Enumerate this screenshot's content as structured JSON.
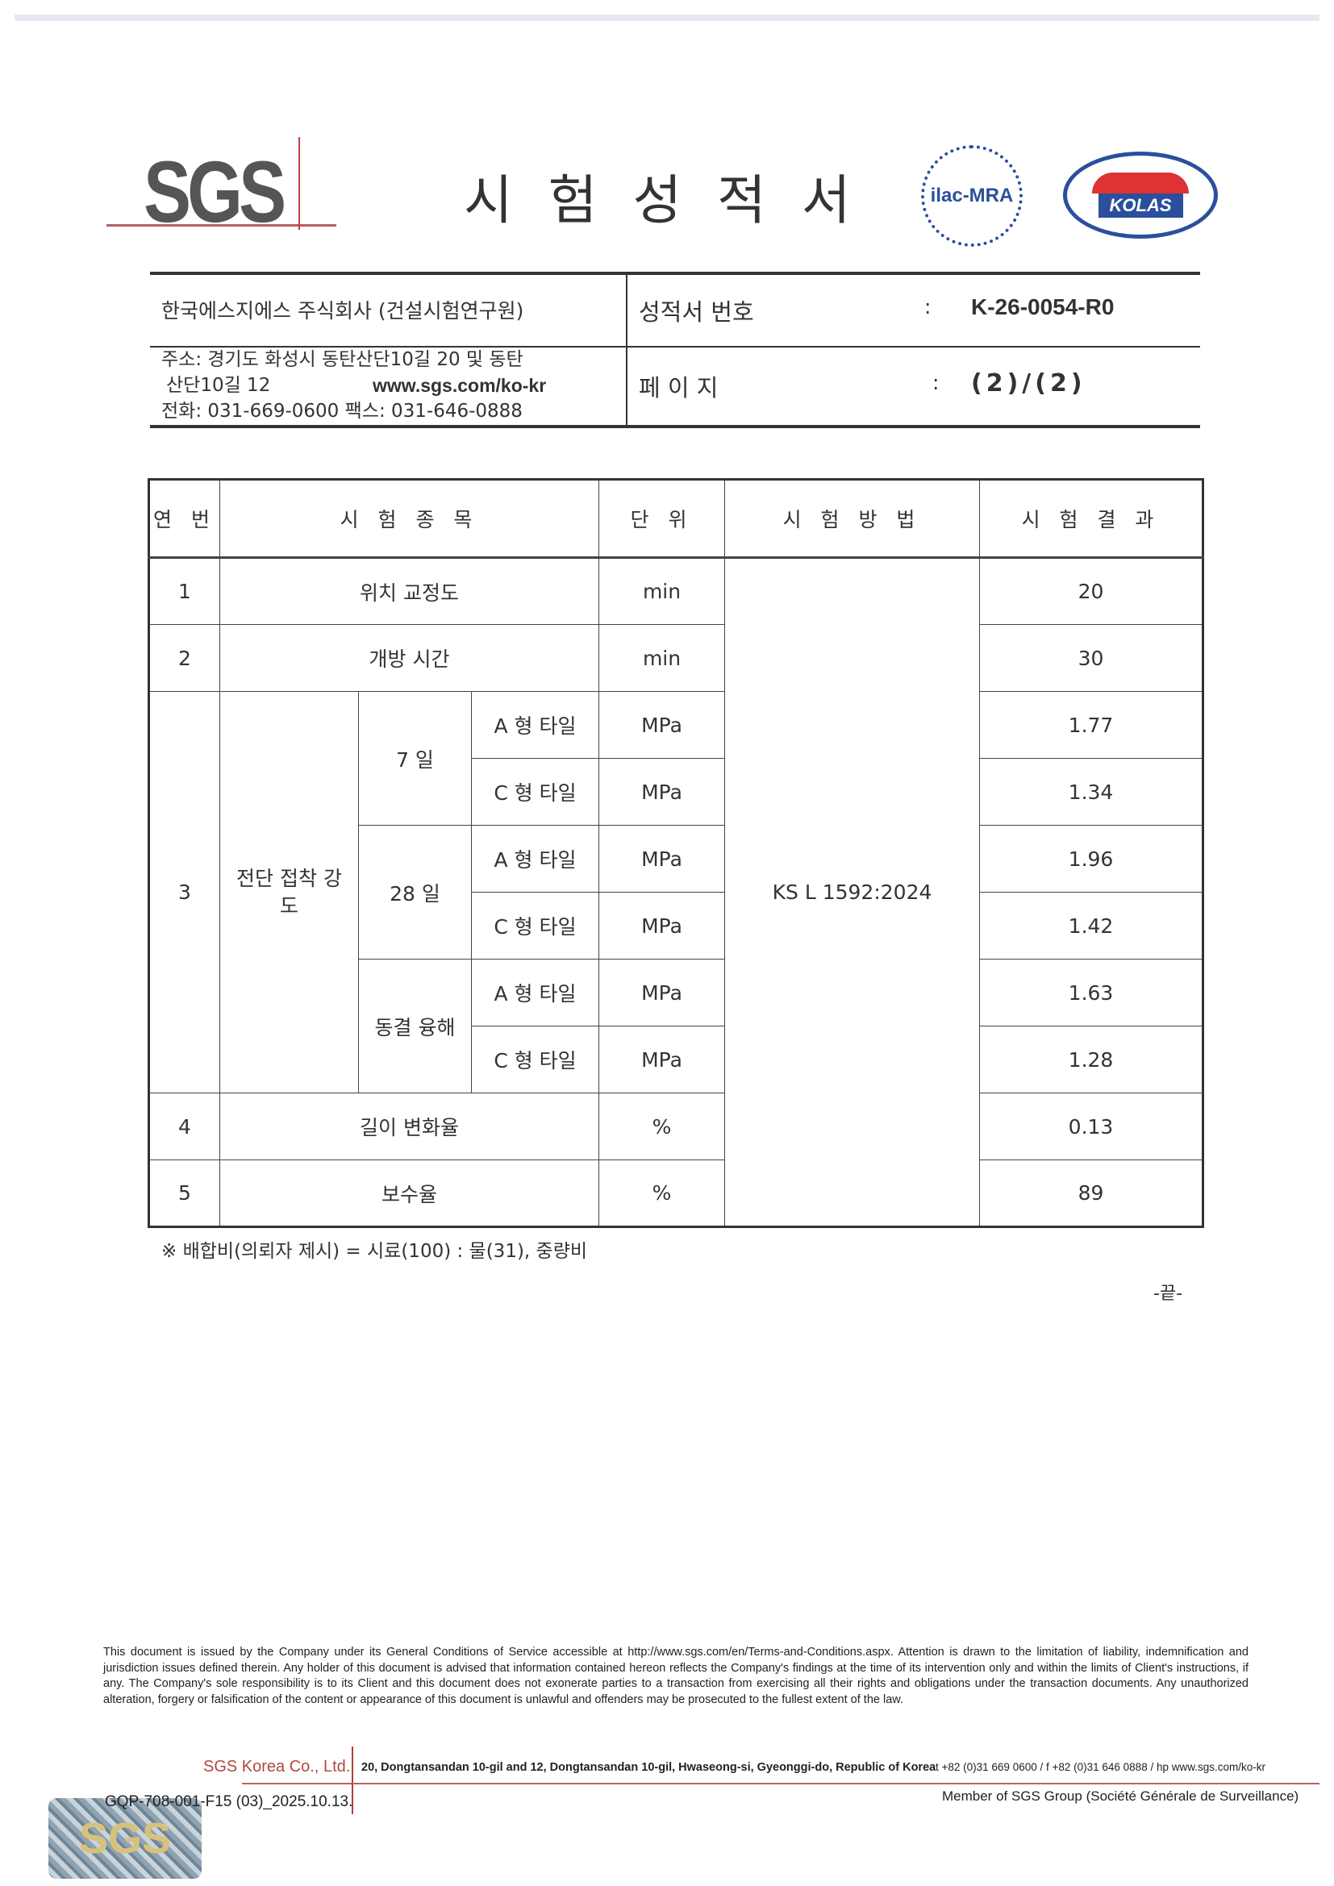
{
  "header": {
    "logo": "SGS",
    "title": "시험성적서",
    "ilac_logo": "ilac-MRA",
    "kolas_logo": "KOLAS",
    "company": "한국에스지에스 주식회사 (건설시험연구원)",
    "address_line1": "주소: 경기도 화성시 동탄산단10길 20 및 동탄",
    "address_line2": "산단10길 12",
    "website": "www.sgs.com/ko-kr",
    "phone_fax": "전화: 031-669-0600 팩스: 031-646-0888",
    "report_no_label": "성적서 번호",
    "report_no": "K-26-0054-R0",
    "page_label": "페 이 지",
    "page_value": "(2)/(2)",
    "colon": ":"
  },
  "table": {
    "headers": [
      "연 번",
      "시 험 종 목",
      "단 위",
      "시 험 방 법",
      "시 험 결 과"
    ],
    "method": "KS L 1592:2024",
    "rows": [
      {
        "no": "1",
        "item": "위치 교정도",
        "unit": "min",
        "result": "20"
      },
      {
        "no": "2",
        "item": "개방 시간",
        "unit": "min",
        "result": "30"
      },
      {
        "no": "3",
        "item": "전단 접착 강도",
        "groups": [
          {
            "label": "7 일",
            "subs": [
              {
                "type": "A 형 타일",
                "unit": "MPa",
                "result": "1.77"
              },
              {
                "type": "C 형 타일",
                "unit": "MPa",
                "result": "1.34"
              }
            ]
          },
          {
            "label": "28 일",
            "subs": [
              {
                "type": "A 형 타일",
                "unit": "MPa",
                "result": "1.96"
              },
              {
                "type": "C 형 타일",
                "unit": "MPa",
                "result": "1.42"
              }
            ]
          },
          {
            "label": "동결 융해",
            "subs": [
              {
                "type": "A 형 타일",
                "unit": "MPa",
                "result": "1.63"
              },
              {
                "type": "C 형 타일",
                "unit": "MPa",
                "result": "1.28"
              }
            ]
          }
        ]
      },
      {
        "no": "4",
        "item": "길이 변화율",
        "unit": "%",
        "result": "0.13"
      },
      {
        "no": "5",
        "item": "보수율",
        "unit": "%",
        "result": "89"
      }
    ]
  },
  "note": "※ 배합비(의뢰자 제시) = 시료(100) : 물(31), 중량비",
  "end_mark": "-끝-",
  "footer": {
    "disclaimer": "This document is issued by the Company under its General Conditions of Service accessible at http://www.sgs.com/en/Terms-and-Conditions.aspx. Attention is drawn to the limitation of liability, indemnification and jurisdiction issues defined therein. Any holder of this document is advised that information contained hereon reflects the Company's findings at the time of its intervention only and within the limits of Client's instructions, if any. The Company's sole responsibility is to its Client and this document does not exonerate parties to a transaction from exercising all their rights and obligations under the transaction documents. Any unauthorized alteration, forgery or falsification of the content or appearance of this document is unlawful and offenders may be prosecuted to the fullest extent of the law.",
    "company": "SGS Korea Co., Ltd.",
    "address": "20, Dongtansandan 10-gil and 12, Dongtansandan 10-gil, Hwaseong-si, Gyeonggi-do, Republic of Korea",
    "contact": "t +82 (0)31 669 0600 / f +82 (0)31 646 0888 / hp www.sgs.com/ko-kr",
    "member": "Member of SGS Group (Société Générale de Surveillance)",
    "form_no": "GQP-708-001-F15 (03)_2025.10.13.",
    "hologram": "SGS"
  }
}
